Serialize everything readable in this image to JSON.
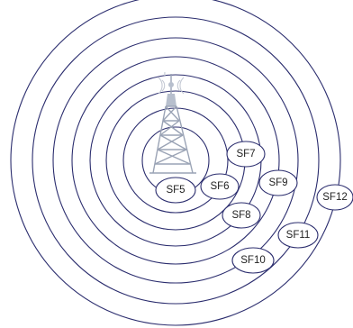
{
  "diagram": {
    "ring_color": "#2b2d6e",
    "tower_color": "#9aa3b5",
    "tower_icon": "radio-tower-icon",
    "labels": [
      "SF5",
      "SF6",
      "SF7",
      "SF8",
      "SF9",
      "SF10",
      "SF11",
      "SF12"
    ]
  }
}
